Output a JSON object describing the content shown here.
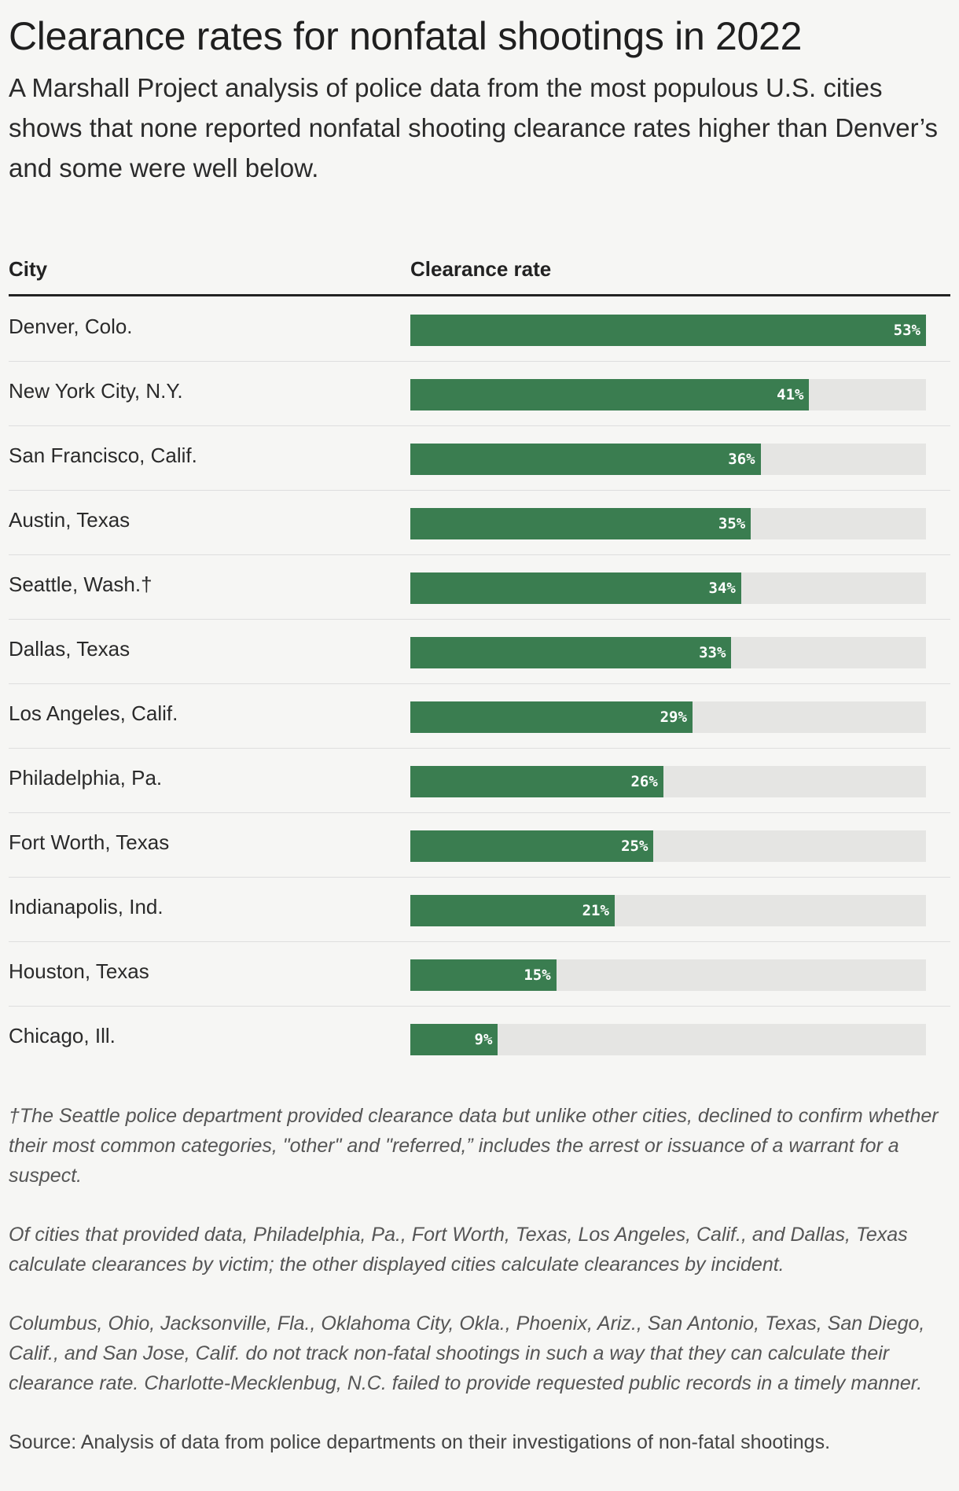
{
  "header": {
    "title": "Clearance rates for nonfatal shootings in 2022",
    "subtitle": "A Marshall Project analysis of police data from the most populous U.S. cities shows that none reported nonfatal shooting clearance rates higher than Denver’s and some were well below."
  },
  "table": {
    "col_city": "City",
    "col_rate": "Clearance rate"
  },
  "colors": {
    "bar": "#3a7d50",
    "track": "#e5e5e3"
  },
  "chart_data": {
    "type": "bar",
    "orientation": "horizontal",
    "categories": [
      "Denver, Colo.",
      "New York City, N.Y.",
      "San Francisco, Calif.",
      "Austin, Texas",
      "Seattle, Wash.†",
      "Dallas, Texas",
      "Los Angeles, Calif.",
      "Philadelphia, Pa.",
      "Fort Worth, Texas",
      "Indianapolis, Ind.",
      "Houston, Texas",
      "Chicago, Ill."
    ],
    "values": [
      53,
      41,
      36,
      35,
      34,
      33,
      29,
      26,
      25,
      21,
      15,
      9
    ],
    "value_labels": [
      "53%",
      "41%",
      "36%",
      "35%",
      "34%",
      "33%",
      "29%",
      "26%",
      "25%",
      "21%",
      "15%",
      "9%"
    ],
    "xlim": [
      0,
      53
    ],
    "grid": false
  },
  "footnotes": {
    "seattle": "†The Seattle police department provided clearance data but unlike other cities, declined to confirm whether their most common categories, \"other\" and \"referred,” includes the arrest or issuance of a warrant for a suspect.",
    "method": "Of cities that provided data, Philadelphia, Pa., Fort Worth, Texas, Los Angeles, Calif., and Dallas, Texas calculate clearances by victim; the other displayed cities calculate clearances by incident.",
    "missing": "Columbus, Ohio, Jacksonville, Fla., Oklahoma City, Okla., Phoenix, Ariz., San Antonio, Texas, San Diego, Calif., and San Jose, Calif. do not track non-fatal shootings in such a way that they can calculate their clearance rate. Charlotte-Mecklenbug, N.C. failed to provide requested public records in a timely manner.",
    "source": "Source: Analysis of data from police departments on their investigations of non-fatal shootings."
  }
}
